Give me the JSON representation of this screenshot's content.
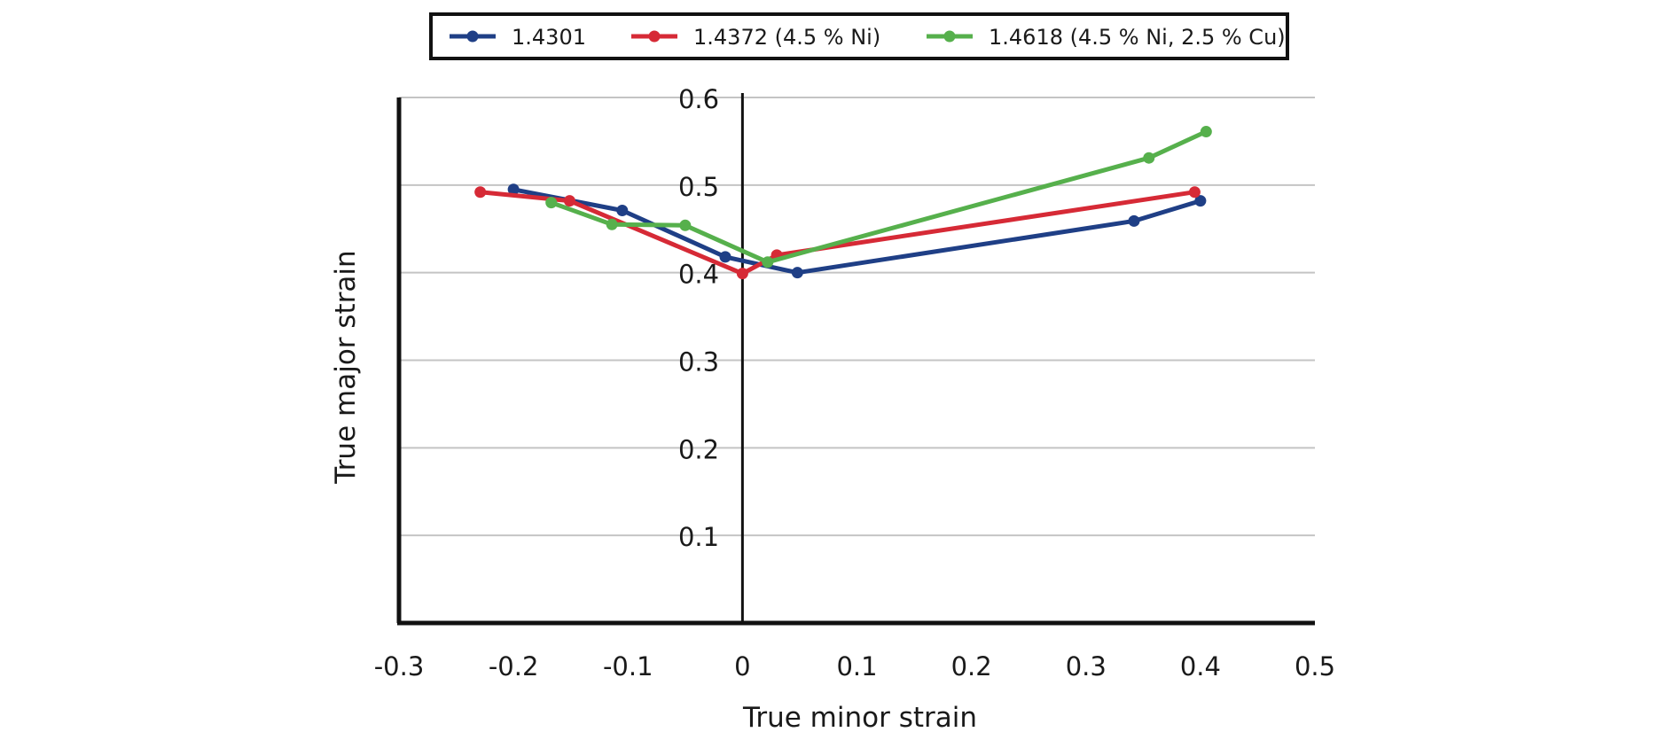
{
  "chart_data": {
    "type": "line",
    "title": "",
    "xlabel": "True minor strain",
    "ylabel": "True major strain",
    "xlim": [
      -0.3,
      0.5
    ],
    "ylim": [
      0,
      0.6
    ],
    "x_ticks": [
      "-0.3",
      "-0.2",
      "-0.1",
      "0",
      "0.1",
      "0.2",
      "0.3",
      "0.4",
      "0.5"
    ],
    "y_ticks": [
      "0.1",
      "0.2",
      "0.3",
      "0.4",
      "0.5",
      "0.6"
    ],
    "grid": "horizontal",
    "legend_position": "top",
    "series": [
      {
        "name": "1.4301",
        "color": "#1f3f86",
        "points": [
          [
            -0.2,
            0.495
          ],
          [
            -0.105,
            0.471
          ],
          [
            -0.015,
            0.418
          ],
          [
            0.048,
            0.4
          ],
          [
            0.342,
            0.459
          ],
          [
            0.4,
            0.482
          ]
        ]
      },
      {
        "name": "1.4372 (4.5 % Ni)",
        "color": "#d62a36",
        "points": [
          [
            -0.229,
            0.492
          ],
          [
            -0.151,
            0.482
          ],
          [
            0.0,
            0.399
          ],
          [
            0.03,
            0.42
          ],
          [
            0.395,
            0.492
          ]
        ]
      },
      {
        "name": "1.4618 (4.5 % Ni, 2.5 % Cu)",
        "color": "#56b04c",
        "points": [
          [
            -0.167,
            0.48
          ],
          [
            -0.114,
            0.455
          ],
          [
            -0.05,
            0.454
          ],
          [
            0.022,
            0.412
          ],
          [
            0.355,
            0.531
          ],
          [
            0.405,
            0.561
          ]
        ]
      }
    ]
  }
}
